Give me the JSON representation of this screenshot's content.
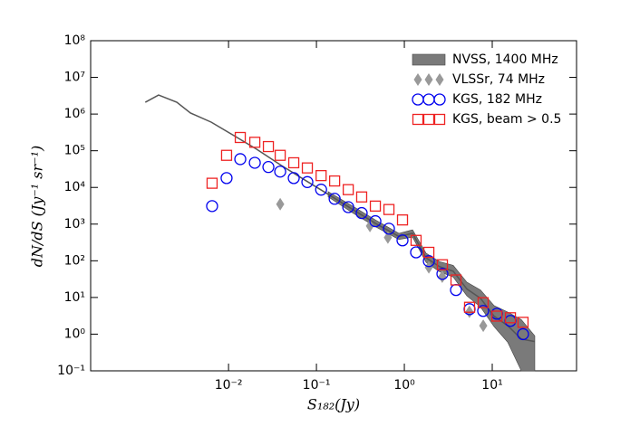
{
  "chart_data": {
    "type": "scatter",
    "xlabel": "S₁₈₂(Jy)",
    "ylabel": "dN/dS (Jy⁻¹ sr⁻¹)",
    "log_x": true,
    "log_y": true,
    "xlim": [
      0.00027,
      91
    ],
    "ylim": [
      0.1,
      100000000
    ],
    "xticks": [
      {
        "value": 0.01,
        "label": "10⁻²"
      },
      {
        "value": 0.1,
        "label": "10⁻¹"
      },
      {
        "value": 1,
        "label": "10⁰"
      },
      {
        "value": 10,
        "label": "10¹"
      }
    ],
    "yticks": [
      {
        "value": 0.1,
        "label": "10⁻¹"
      },
      {
        "value": 1,
        "label": "10⁰"
      },
      {
        "value": 10,
        "label": "10¹"
      },
      {
        "value": 100,
        "label": "10²"
      },
      {
        "value": 1000,
        "label": "10³"
      },
      {
        "value": 10000,
        "label": "10⁴"
      },
      {
        "value": 100000,
        "label": "10⁵"
      },
      {
        "value": 1000000,
        "label": "10⁶"
      },
      {
        "value": 10000000,
        "label": "10⁷"
      },
      {
        "value": 100000000,
        "label": "10⁸"
      }
    ],
    "legend": "upper right",
    "series": [
      {
        "name": "NVSS, 1400 MHz",
        "marker": "line",
        "color": "#555555",
        "band_color": "#7a7a7a",
        "x": [
          0.00113,
          0.0016,
          0.00258,
          0.00369,
          0.00637,
          0.0115,
          0.0209,
          0.0396,
          0.0735,
          0.136,
          0.252,
          0.468,
          0.867,
          1.24,
          1.77,
          2.52,
          3.6,
          5.15,
          7.35,
          10.5,
          15,
          21.4,
          30.5
        ],
        "values": [
          2100000,
          3300000,
          2100000,
          1070000,
          600000,
          260000,
          110000,
          40000,
          16000,
          6500,
          2600,
          1050,
          460,
          560,
          120,
          69,
          52,
          17,
          9.5,
          3.1,
          1.7,
          0.74,
          0.63
        ],
        "low": [
          null,
          null,
          null,
          null,
          null,
          null,
          null,
          null,
          null,
          5500,
          2100,
          850,
          380,
          440,
          90,
          50,
          36,
          11,
          5.5,
          1.6,
          0.6,
          0.1,
          0.1
        ],
        "high": [
          null,
          null,
          null,
          null,
          null,
          null,
          null,
          null,
          null,
          7700,
          3200,
          1300,
          560,
          700,
          160,
          95,
          75,
          26,
          16,
          6,
          4,
          2.5,
          0.9
        ]
      },
      {
        "name": "VLSSr, 74 MHz",
        "marker": "diamond",
        "color": "#999999",
        "x": [
          0.0387,
          0.406,
          0.65,
          1.9,
          2.7,
          5.5,
          7.9
        ],
        "values": [
          3500,
          890,
          430,
          66,
          37,
          4.1,
          1.7
        ]
      },
      {
        "name": "KGS, 182 MHz",
        "marker": "circle",
        "color": "#0000ee",
        "x": [
          0.0065,
          0.0095,
          0.0136,
          0.0199,
          0.0284,
          0.0387,
          0.0552,
          0.0788,
          0.113,
          0.161,
          0.23,
          0.327,
          0.468,
          0.668,
          0.953,
          1.36,
          1.9,
          2.71,
          3.87,
          5.52,
          7.88,
          11.3,
          16.1,
          22.4
        ],
        "values": [
          3100,
          18000,
          59000,
          47000,
          36000,
          27000,
          18000,
          14000,
          8700,
          4900,
          2900,
          2000,
          1200,
          750,
          360,
          170,
          98,
          44,
          16,
          4.8,
          4.3,
          3.6,
          2.3,
          1
        ]
      },
      {
        "name": "KGS, beam > 0.5",
        "marker": "square",
        "color": "#ee2222",
        "x": [
          0.0065,
          0.0095,
          0.0136,
          0.0199,
          0.0284,
          0.0387,
          0.0552,
          0.0788,
          0.113,
          0.161,
          0.23,
          0.327,
          0.468,
          0.668,
          0.953,
          1.36,
          1.9,
          2.71,
          3.87,
          5.52,
          7.88,
          11.3,
          16.1,
          22.4
        ],
        "values": [
          13000,
          75000,
          230000,
          170000,
          130000,
          75000,
          47000,
          34000,
          21000,
          15000,
          8700,
          5500,
          3100,
          2500,
          1300,
          360,
          170,
          78,
          30,
          5.4,
          7.2,
          3.1,
          2.8,
          2.1
        ]
      }
    ]
  }
}
